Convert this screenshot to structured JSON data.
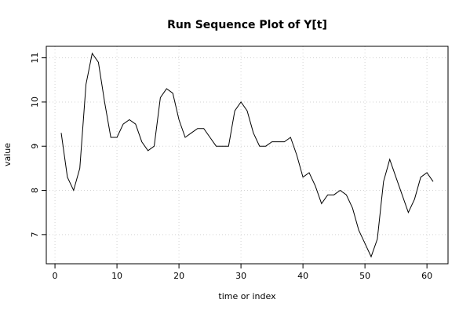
{
  "chart_data": {
    "type": "line",
    "title": "Run Sequence Plot of Y[t]",
    "xlabel": "time or index",
    "ylabel": "value",
    "xlim": [
      -1.4,
      63.4
    ],
    "ylim": [
      6.34,
      11.26
    ],
    "xticks": [
      0,
      10,
      20,
      30,
      40,
      50,
      60
    ],
    "yticks": [
      7,
      8,
      9,
      10,
      11
    ],
    "grid": true,
    "series": [
      {
        "x": [
          1,
          2,
          3,
          4,
          5,
          6,
          7,
          8,
          9,
          10,
          11,
          12,
          13,
          14,
          15,
          16,
          17,
          18,
          19,
          20,
          21,
          22,
          23,
          24,
          25,
          26,
          27,
          28,
          29,
          30,
          31,
          32,
          33,
          34,
          35,
          36,
          37,
          38,
          39,
          40,
          41,
          42,
          43,
          44,
          45,
          46,
          47,
          48,
          49,
          50,
          51,
          52,
          53,
          54,
          55,
          56,
          57,
          58,
          59,
          60,
          61
        ],
        "values": [
          9.3,
          8.3,
          8.0,
          8.5,
          10.4,
          11.1,
          10.9,
          10.0,
          9.2,
          9.2,
          9.5,
          9.6,
          9.5,
          9.1,
          8.9,
          9.0,
          10.1,
          10.3,
          10.2,
          9.6,
          9.2,
          9.3,
          9.4,
          9.4,
          9.2,
          9.0,
          9.0,
          9.0,
          9.8,
          10.0,
          9.8,
          9.3,
          9.0,
          9.0,
          9.1,
          9.1,
          9.1,
          9.2,
          8.8,
          8.3,
          8.4,
          8.1,
          7.7,
          7.9,
          7.9,
          8.0,
          7.9,
          7.6,
          7.1,
          6.8,
          6.5,
          6.9,
          8.2,
          8.7,
          8.3,
          7.9,
          7.5,
          7.8,
          8.3,
          8.4,
          8.2
        ]
      }
    ]
  }
}
